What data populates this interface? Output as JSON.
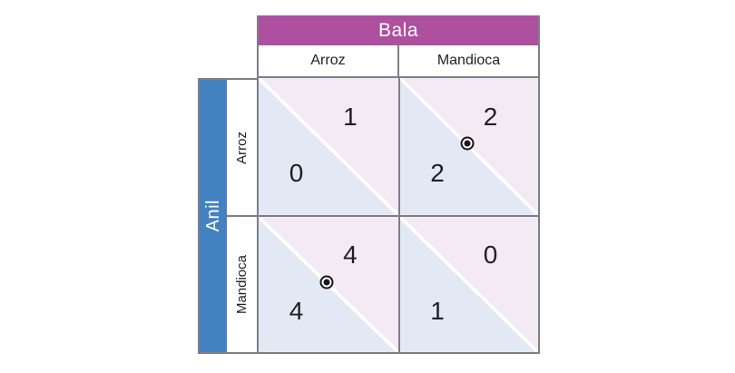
{
  "palette": {
    "bala_header_bg": "#ae4fa0",
    "anil_bar_bg": "#4381c1",
    "bala_triangle_bg": "#f3eaf4",
    "anil_triangle_bg": "#e3e9f4",
    "grid_border": "#7e7e88",
    "header_text": "#ffffff",
    "text_dark": "#1e1e26"
  },
  "game": {
    "column_player": "Bala",
    "row_player": "Anil",
    "column_strategies": [
      "Arroz",
      "Mandioca"
    ],
    "row_strategies": [
      "Arroz",
      "Mandioca"
    ],
    "cells": [
      {
        "row": "Arroz",
        "col": "Arroz",
        "bala_payoff": "1",
        "anil_payoff": "0",
        "marked": false
      },
      {
        "row": "Arroz",
        "col": "Mandioca",
        "bala_payoff": "2",
        "anil_payoff": "2",
        "marked": true
      },
      {
        "row": "Mandioca",
        "col": "Arroz",
        "bala_payoff": "4",
        "anil_payoff": "4",
        "marked": true
      },
      {
        "row": "Mandioca",
        "col": "Mandioca",
        "bala_payoff": "0",
        "anil_payoff": "1",
        "marked": false
      }
    ]
  }
}
